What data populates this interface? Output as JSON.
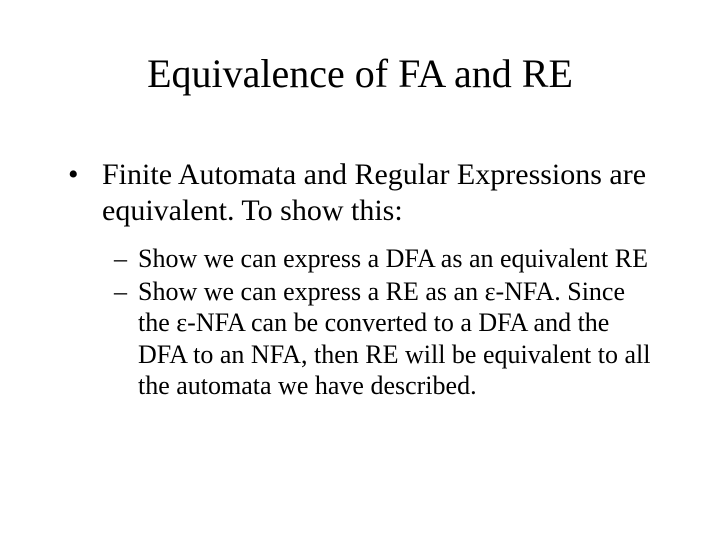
{
  "slide": {
    "title": "Equivalence of FA and RE",
    "bullets": {
      "b1": {
        "marker": "•",
        "text": "Finite Automata and Regular Expressions are equivalent.  To show this:"
      },
      "sub1": {
        "marker": "–",
        "text": "Show we can express a DFA as an equivalent RE"
      },
      "sub2": {
        "marker": "–",
        "text": "Show we can express a RE as an ε-NFA.  Since the ε-NFA can be converted to a DFA and the DFA to an NFA, then RE will be equivalent to all the automata we have described."
      }
    }
  },
  "style": {
    "background_color": "#ffffff",
    "text_color": "#000000",
    "title_fontsize": 40,
    "body_fontsize_l1": 30,
    "body_fontsize_l2": 26,
    "font_family": "Times New Roman"
  }
}
